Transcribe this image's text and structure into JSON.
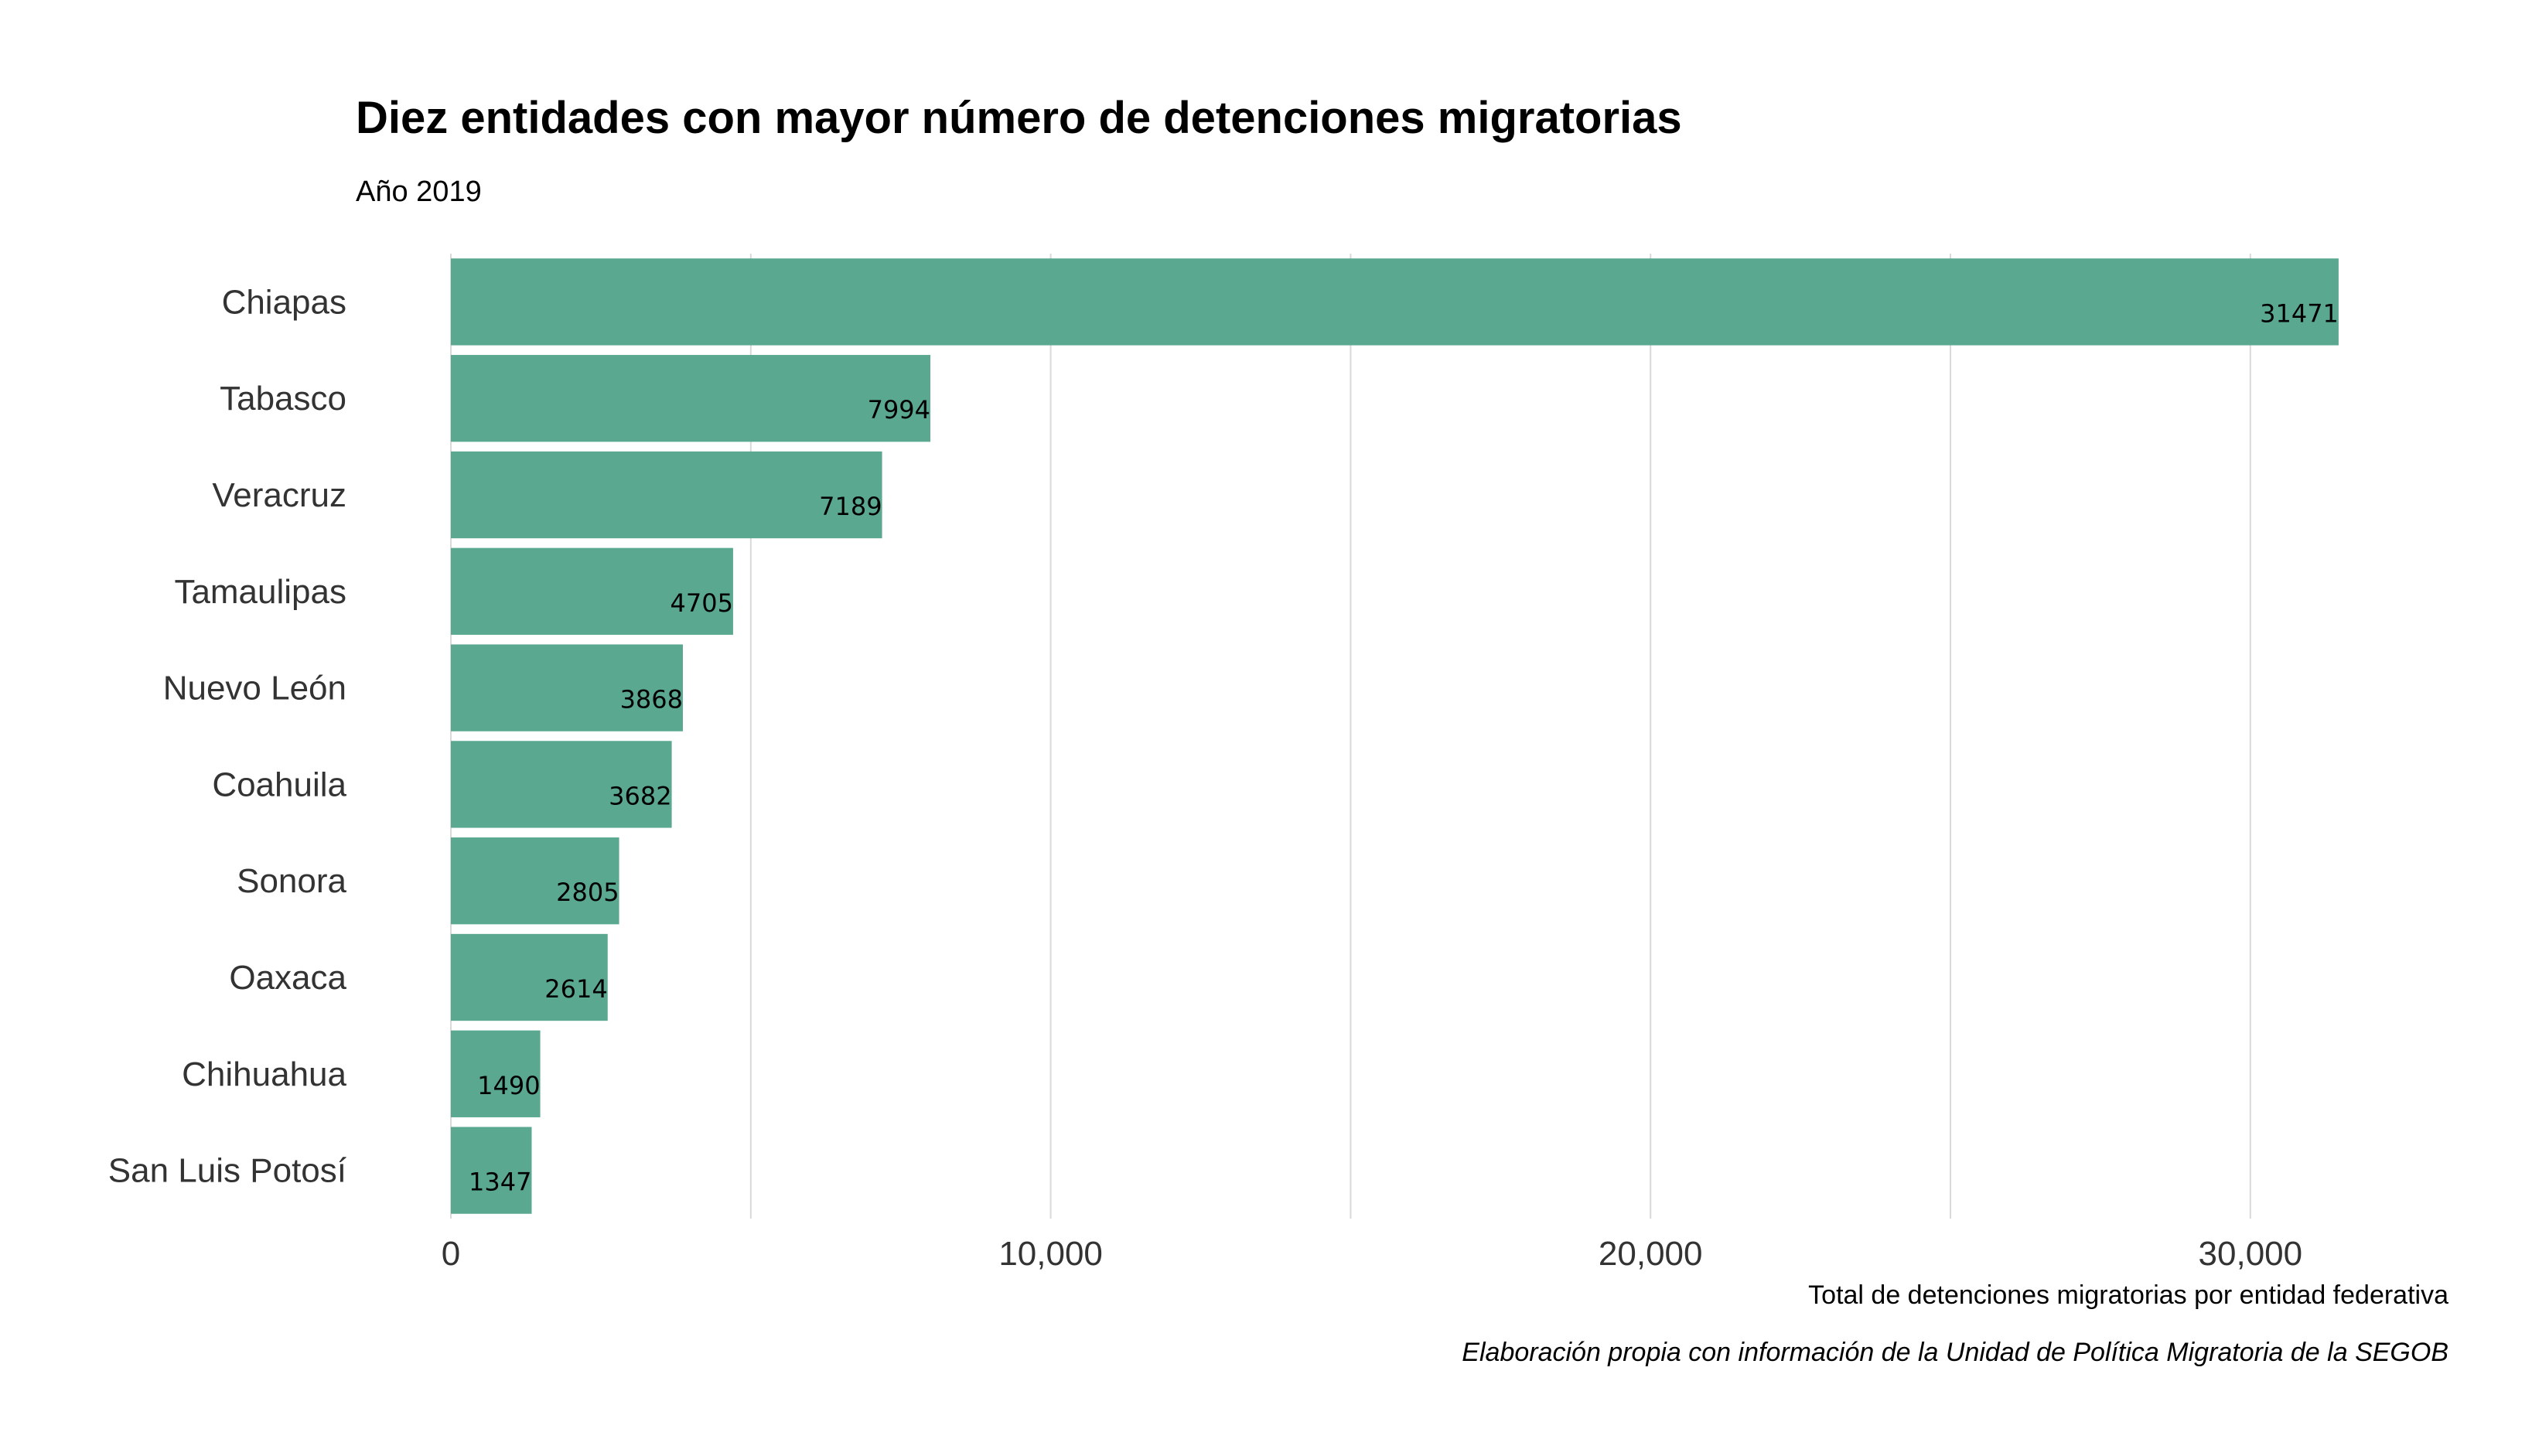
{
  "chart_data": {
    "type": "bar",
    "orientation": "horizontal",
    "title": "Diez entidades con mayor número de detenciones migratorias",
    "subtitle": "Año 2019",
    "xlabel": "Total de detenciones migratorias por entidad federativa",
    "caption": "Elaboración propia con información de la Unidad de Política Migratoria de la SEGOB",
    "categories": [
      "Chiapas",
      "Tabasco",
      "Veracruz",
      "Tamaulipas",
      "Nuevo León",
      "Coahuila",
      "Sonora",
      "Oaxaca",
      "Chihuahua",
      "San Luis Potosí"
    ],
    "values": [
      31471,
      7994,
      7189,
      4705,
      3868,
      3682,
      2805,
      2614,
      1490,
      1347
    ],
    "data_labels": [
      "31471",
      "7994",
      "7189",
      "4705",
      "3868",
      "3682",
      "2805",
      "2614",
      "1490",
      "1347"
    ],
    "xticks": [
      0,
      10000,
      20000,
      30000
    ],
    "xtick_labels": [
      "0",
      "10,000",
      "20,000",
      "30,000"
    ],
    "minor_gridlines": [
      5000,
      15000,
      25000
    ],
    "xlim": [
      0,
      33045
    ],
    "grid": "vertical",
    "bar_color": "#5aa890",
    "gridline_color": "#d9d9d9"
  }
}
